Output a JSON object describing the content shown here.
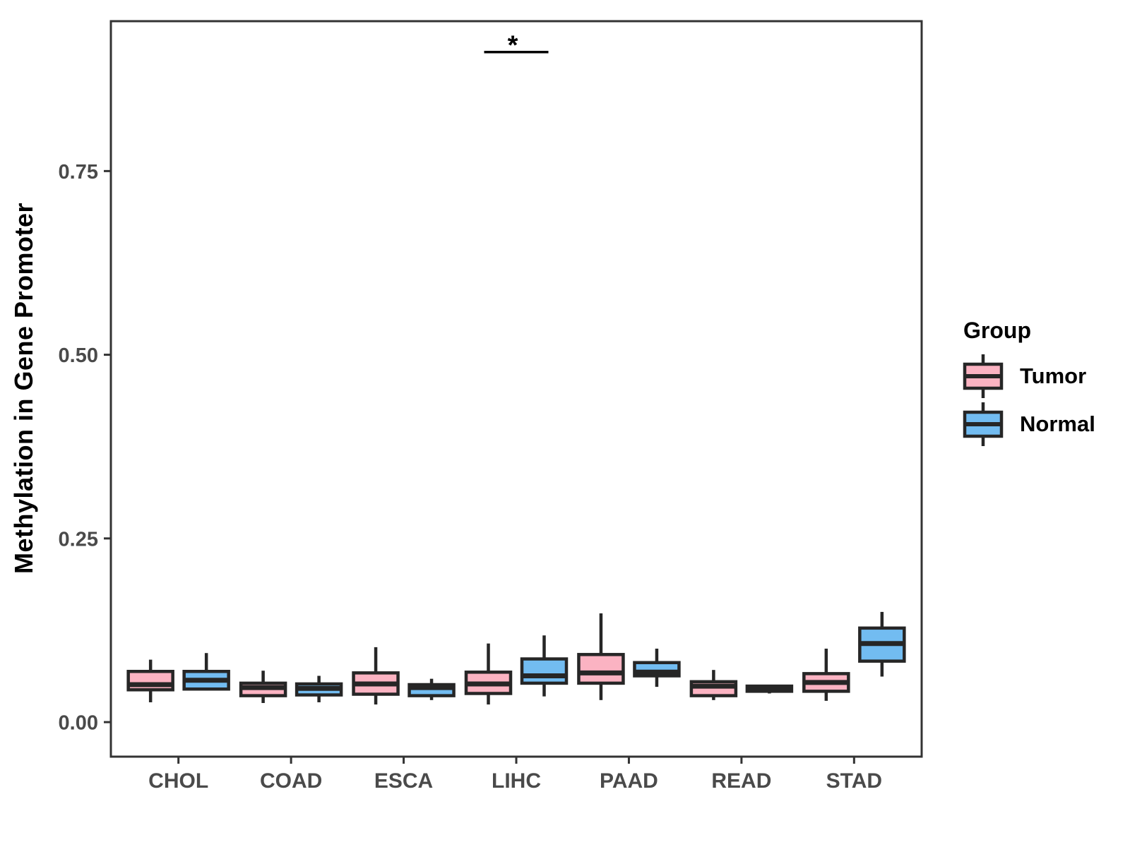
{
  "chart_data": {
    "type": "grouped_boxplot",
    "title": "",
    "xlabel": "",
    "ylabel": "Methylation in Gene Promoter",
    "categories": [
      "CHOL",
      "COAD",
      "ESCA",
      "LIHC",
      "PAAD",
      "READ",
      "STAD"
    ],
    "series": [
      {
        "name": "Tumor",
        "color": "#FBB3C2",
        "boxes": [
          [
            0.027,
            0.044,
            0.051,
            0.069,
            0.085
          ],
          [
            0.026,
            0.036,
            0.047,
            0.053,
            0.07
          ],
          [
            0.024,
            0.038,
            0.052,
            0.067,
            0.102
          ],
          [
            0.024,
            0.039,
            0.052,
            0.068,
            0.107
          ],
          [
            0.03,
            0.053,
            0.067,
            0.092,
            0.148
          ],
          [
            0.03,
            0.036,
            0.049,
            0.055,
            0.071
          ],
          [
            0.029,
            0.042,
            0.054,
            0.066,
            0.1
          ]
        ]
      },
      {
        "name": "Normal",
        "color": "#72BCF1",
        "boxes": [
          [
            0.043,
            0.045,
            0.057,
            0.069,
            0.094
          ],
          [
            0.027,
            0.037,
            0.046,
            0.052,
            0.063
          ],
          [
            0.03,
            0.036,
            0.047,
            0.051,
            0.059
          ],
          [
            0.035,
            0.053,
            0.063,
            0.086,
            0.118
          ],
          [
            0.048,
            0.063,
            0.068,
            0.081,
            0.1
          ],
          [
            0.039,
            0.042,
            0.045,
            0.049,
            0.05
          ],
          [
            0.062,
            0.083,
            0.107,
            0.128,
            0.15
          ]
        ]
      }
    ],
    "yticks": {
      "values": [
        0.0,
        0.25,
        0.5,
        0.75
      ],
      "labels": [
        "0.00",
        "0.25",
        "0.50",
        "0.75"
      ]
    },
    "ylim": [
      -0.047,
      0.954
    ],
    "grid": "off",
    "significance": {
      "category": "LIHC",
      "between": [
        "Tumor",
        "Normal"
      ],
      "label": "*",
      "bar_y": 0.912
    },
    "legend": {
      "title": "Group",
      "position": "right",
      "items": [
        {
          "label": "Tumor",
          "color": "#FBB3C2"
        },
        {
          "label": "Normal",
          "color": "#72BCF1"
        }
      ]
    }
  },
  "style": {
    "box_border": "#262626",
    "median_color": "#262626",
    "panel_border": "#333333",
    "axis_text_color": "#4a4a4a",
    "annotation_color": "#000000",
    "background": "#ffffff"
  }
}
